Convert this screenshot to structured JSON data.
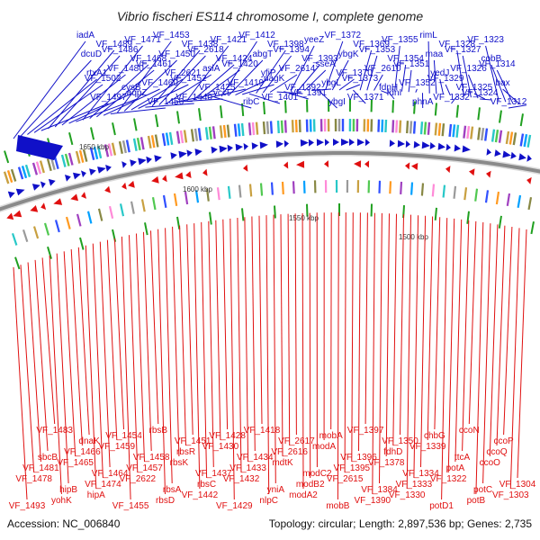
{
  "map": {
    "title": "Vibrio fischeri ES114 chromosome I, complete genome",
    "accession_text": "Accession: NC_006840",
    "summary_text": "Topology: circular; Length: 2,897,536 bp; Genes: 2,735",
    "scale_marks": [
      "1650 kbp",
      "1600 kbp",
      "1550 kbp",
      "1500 kbp"
    ],
    "colors": {
      "forward_strand": "#1010c8",
      "reverse_strand": "#e01010",
      "backbone": "#8a8a8a"
    },
    "forward_labels": [
      "iadA",
      "dcuD",
      "rtxA1",
      "VF_1502",
      "VF_1497",
      "VF_1489",
      "VF_1486",
      "VF_1480",
      "cysB",
      "aqpZ",
      "VF_1471",
      "VF_1468",
      "VF_1461",
      "VF_1460",
      "VF_1456",
      "VF_1453",
      "VF_1450",
      "VF_2621",
      "VF_1452",
      "VF_1440",
      "VF_1438",
      "VF_2618",
      "aslA",
      "VF_1425",
      "yccF",
      "VF_1421",
      "VF_1424",
      "VF_1420",
      "VF_1419",
      "ribC",
      "VF_1412",
      "abgT",
      "yfiP",
      "nagK",
      "VF_1401",
      "VF_1398",
      "VF_1394",
      "VF_2614",
      "VF_1392",
      "VF_1391",
      "yeeZ",
      "VF_1393",
      "sseA",
      "ybgL",
      "ybgI",
      "VF_1372",
      "ybgK",
      "VF_1370",
      "VF_1373",
      "VF_1371",
      "VF_1369",
      "VF_1353",
      "VF_2610",
      "fdnH",
      "fdnI",
      "VF_1355",
      "VF_1354",
      "VF_1351",
      "VF_1352",
      "phnA",
      "rimL",
      "maa",
      "yedJ",
      "VF_1329",
      "VF_1332",
      "VF_1328",
      "VF_1327",
      "VF_1326",
      "VF_1325",
      "VF_1324",
      "VF_1323",
      "cobB",
      "VF_1314",
      "bax",
      "VF_1312"
    ],
    "reverse_labels": [
      "VF_1493",
      "VF_1478",
      "VF_1481",
      "sbcB",
      "VF_1483",
      "yohK",
      "hipB",
      "VF_1465",
      "VF_1466",
      "dnaK",
      "hipA",
      "VF_1474",
      "VF_1464",
      "VF_1459",
      "VF_1454",
      "VF_1455",
      "VF_2622",
      "VF_1457",
      "VF_1458",
      "rbsB",
      "rbsD",
      "rbsA",
      "rbsK",
      "rbsR",
      "VF_1451",
      "VF_1442",
      "rbsC",
      "VF_1437",
      "VF_1430",
      "VF_1428",
      "VF_1429",
      "VF_1432",
      "VF_1433",
      "VF_1434",
      "VF_1418",
      "nlpC",
      "yniA",
      "mdtK",
      "VF_2616",
      "VF_2617",
      "modA2",
      "modB2",
      "modC2",
      "modA",
      "mobA",
      "mobB",
      "VF_2615",
      "VF_1395",
      "VF_1396",
      "VF_1397",
      "VF_1390",
      "VF_1384",
      "VF_1378",
      "fdhD",
      "VF_1350",
      "VF_1330",
      "VF_1333",
      "VF_1334",
      "VF_1339",
      "chbG",
      "potD1",
      "VF_1322",
      "potA",
      "ttcA",
      "ccoN",
      "potB",
      "potC",
      "ccoO",
      "ccoQ",
      "ccoP",
      "VF_1303",
      "VF_1304"
    ]
  }
}
